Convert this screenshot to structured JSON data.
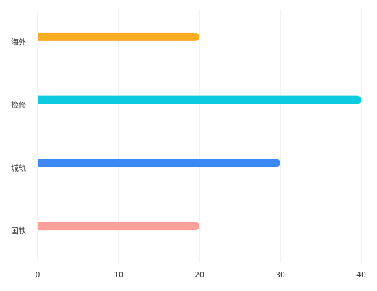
{
  "chart_data": {
    "type": "bar",
    "orientation": "horizontal",
    "categories": [
      "海外",
      "检修",
      "城轨",
      "国铁"
    ],
    "values": [
      20,
      40,
      30,
      20
    ],
    "colors": [
      "#f7ac22",
      "#0ccbdf",
      "#3c89f6",
      "#ff9f9a"
    ],
    "xlim": [
      0,
      40
    ],
    "xticks": [
      0,
      10,
      20,
      30,
      40
    ],
    "grid": true
  }
}
